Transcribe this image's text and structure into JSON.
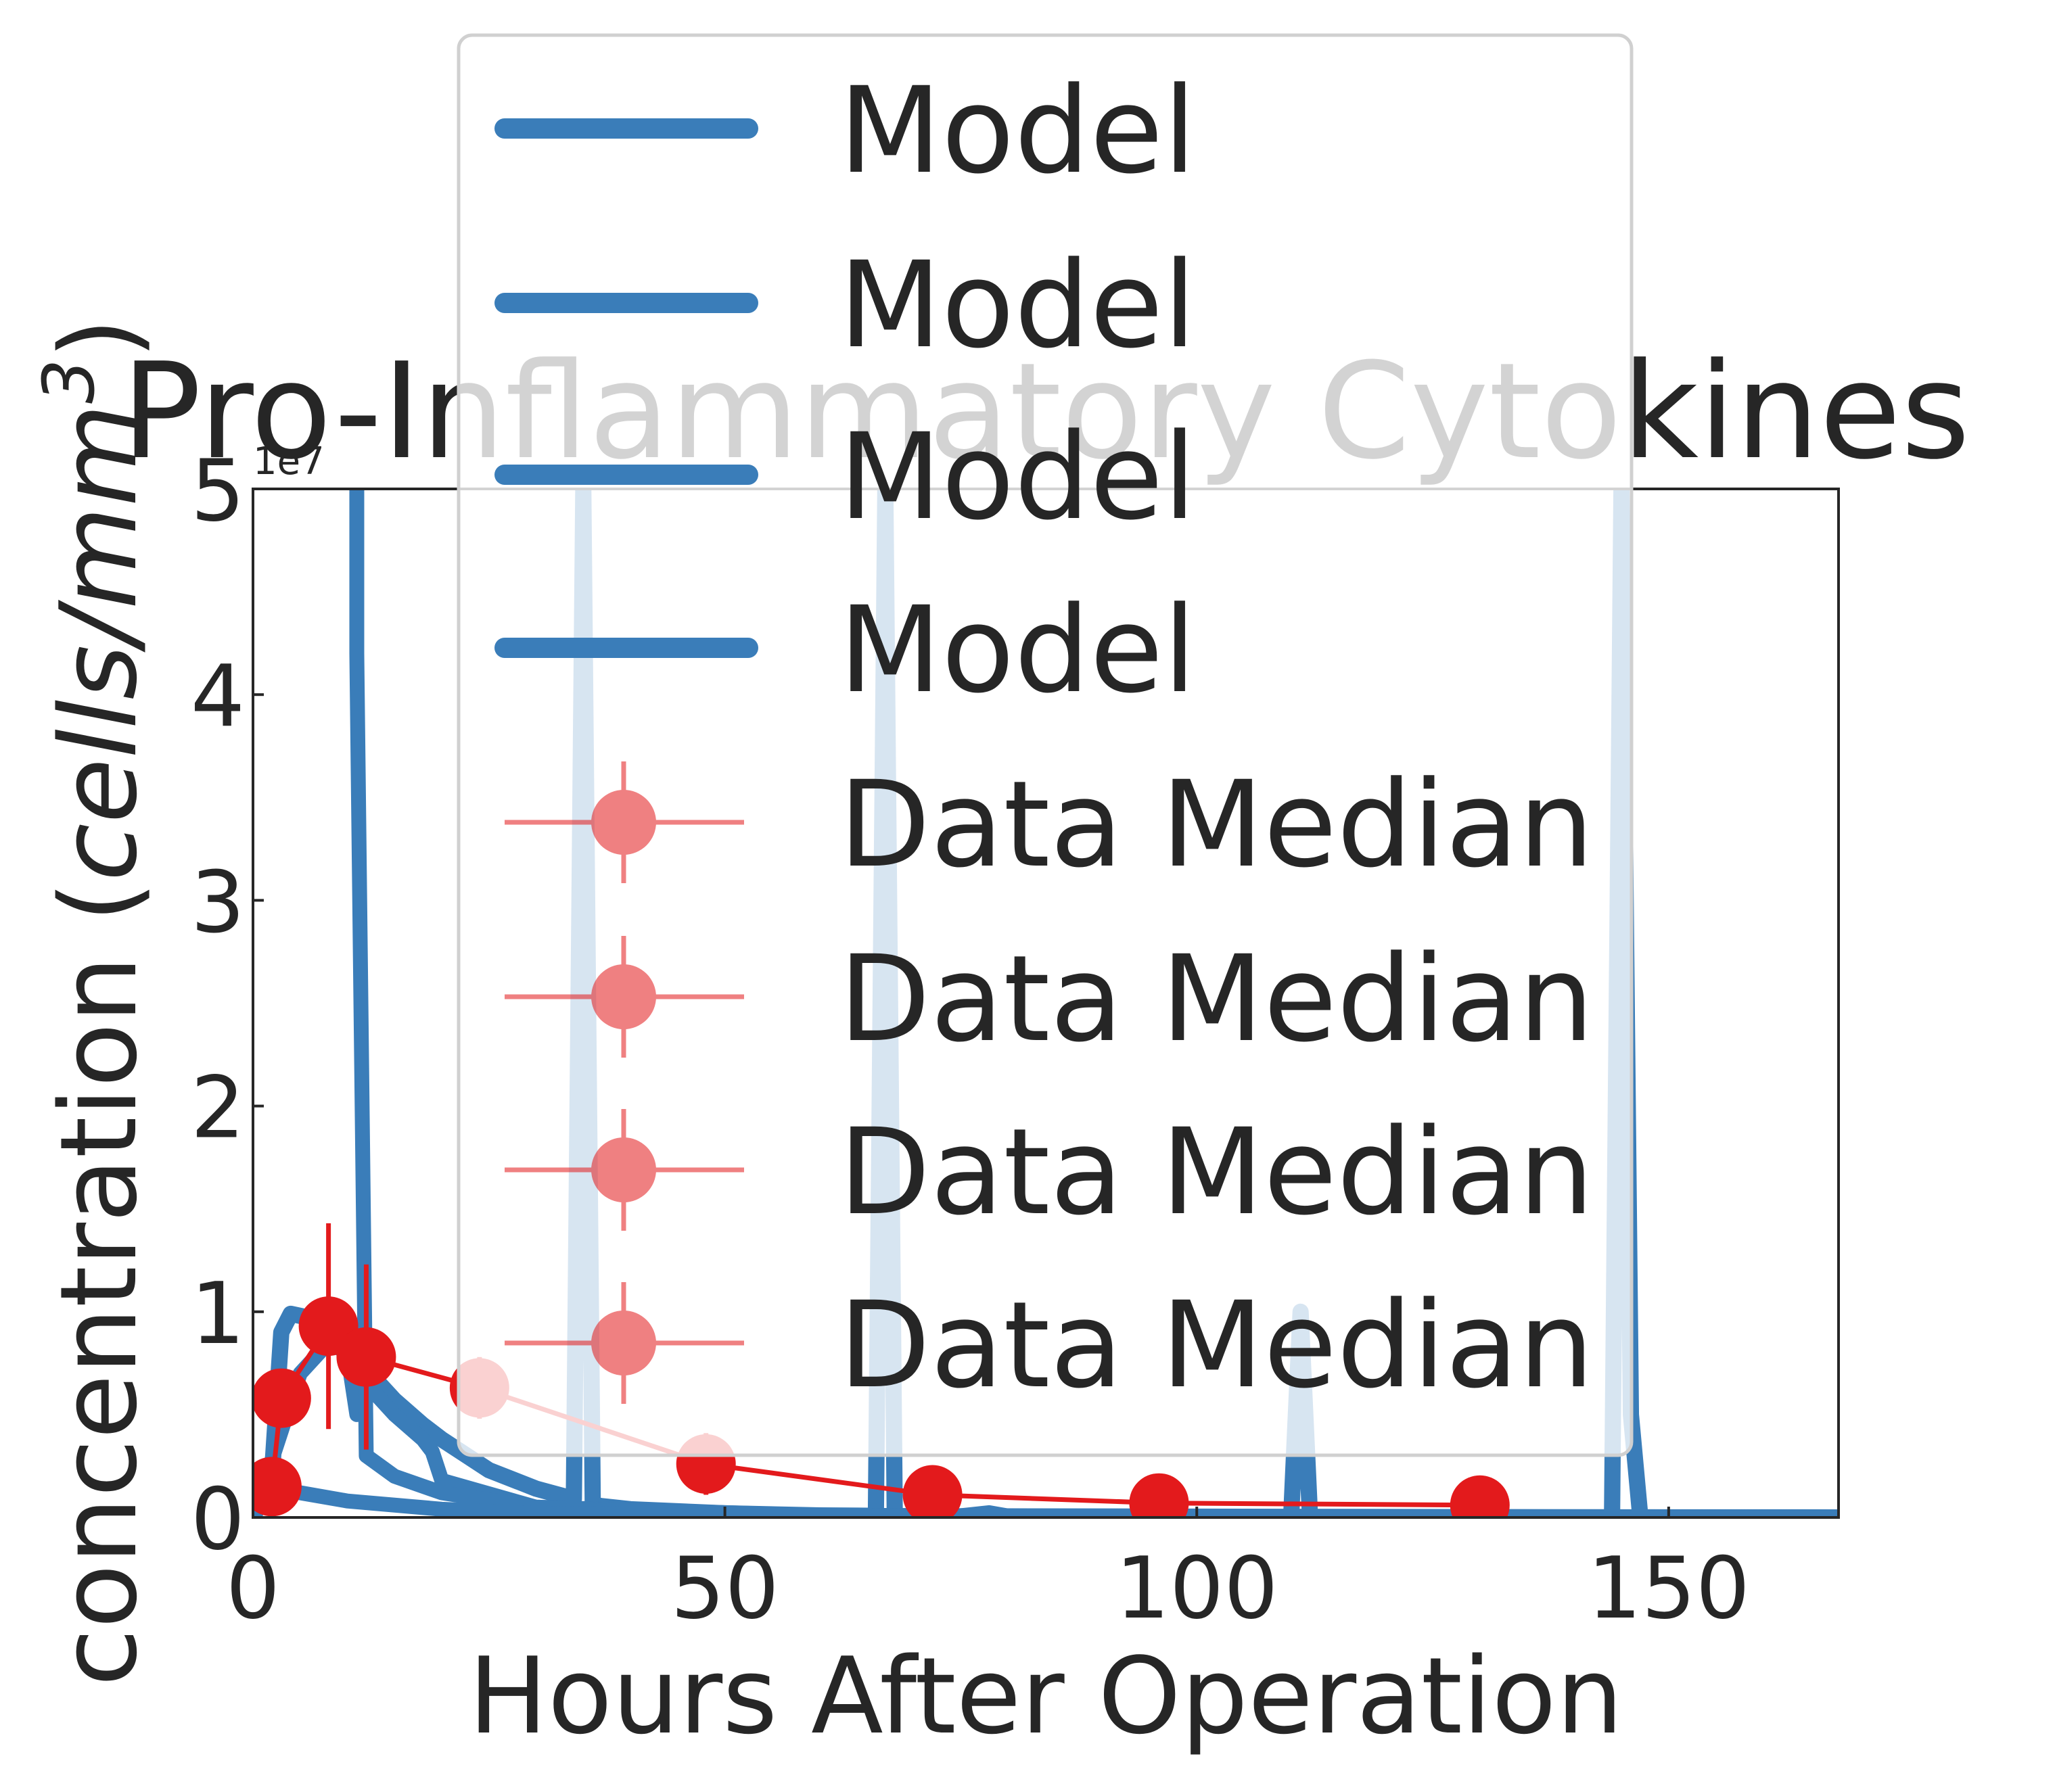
{
  "chart_data": {
    "type": "line",
    "title": "Pro-Inflammatory Cytokines",
    "xlabel": "Hours After Operation",
    "ylabel_main": "concentration (",
    "ylabel_italic": "cells/mm",
    "ylabel_sup": "3",
    "ylabel_end": ")",
    "offset_text": "1e7",
    "xlim": [
      0,
      168
    ],
    "ylim": [
      0,
      50000000.0
    ],
    "xticks": [
      0,
      50,
      100,
      150
    ],
    "xtick_labels": [
      "0",
      "50",
      "100",
      "150"
    ],
    "yticks": [
      0,
      10000000.0,
      20000000.0,
      30000000.0,
      40000000.0,
      50000000.0
    ],
    "ytick_labels": [
      "0",
      "1",
      "2",
      "3",
      "4",
      "5"
    ],
    "grid": false,
    "legend_position": "top-center",
    "legend": [
      {
        "label": "Model",
        "kind": "line"
      },
      {
        "label": "Model",
        "kind": "line"
      },
      {
        "label": "Model",
        "kind": "line"
      },
      {
        "label": "Model",
        "kind": "line"
      },
      {
        "label": "Data Median",
        "kind": "errorbar"
      },
      {
        "label": "Data Median",
        "kind": "errorbar"
      },
      {
        "label": "Data Median",
        "kind": "errorbar"
      },
      {
        "label": "Data Median",
        "kind": "errorbar"
      }
    ],
    "colors": {
      "model": "#3a7db9",
      "data": "#e31a1c",
      "data_legend": "#ef7f81"
    },
    "model_series": [
      {
        "name": "Model",
        "x": [
          0,
          2,
          3,
          4,
          5,
          8,
          10,
          12,
          15,
          18,
          20,
          25,
          30,
          34,
          35,
          36,
          40,
          50,
          60,
          66,
          67,
          68,
          75,
          78,
          80,
          90,
          100,
          110,
          111,
          112,
          113,
          120,
          140,
          144,
          145,
          146,
          147,
          150,
          168
        ],
        "y": [
          0,
          2000000,
          9000000,
          9900000,
          9800000,
          9500000,
          8400000,
          7200000,
          5700000,
          4500000,
          3800000,
          2300000,
          1400000,
          900000,
          50000000,
          600000,
          400000,
          200000,
          100000,
          80000,
          50000000,
          60000,
          50000,
          200000,
          40000,
          30000,
          20000,
          15000,
          10000000,
          12000,
          10000,
          8000,
          5000,
          4000,
          50000000,
          5000000,
          3000,
          2500,
          2000
        ]
      },
      {
        "name": "Model",
        "x": [
          0,
          5,
          8,
          10,
          11,
          12,
          15,
          18,
          19,
          20,
          30,
          60,
          168
        ],
        "y": [
          0,
          7000000,
          8500000,
          8000000,
          5000000,
          6500000,
          5000000,
          3800000,
          3200000,
          1800000,
          500000,
          100000,
          20000
        ]
      },
      {
        "name": "Model",
        "x": [
          11,
          11,
          12,
          15,
          20,
          30,
          50,
          80,
          120,
          168
        ],
        "y": [
          50000000,
          42000000,
          3000000,
          2000000,
          1200000,
          500000,
          150000,
          50000,
          20000,
          10000
        ]
      },
      {
        "name": "Model",
        "x": [
          0,
          2,
          5,
          10,
          20,
          30,
          60,
          100,
          168
        ],
        "y": [
          0,
          1500000,
          1200000,
          800000,
          400000,
          200000,
          80000,
          30000,
          10000
        ]
      }
    ],
    "data_series": [
      {
        "name": "Data Median",
        "x": [
          2,
          3,
          8,
          12,
          24,
          48,
          72,
          96,
          130
        ],
        "y": [
          1500000,
          5800000,
          9300000,
          7800000,
          6300000,
          2600000,
          1100000,
          700000,
          600000
        ],
        "err": [
          800000,
          1000000,
          5000000,
          4500000,
          1500000,
          1500000,
          300000,
          200000,
          200000
        ]
      }
    ]
  }
}
